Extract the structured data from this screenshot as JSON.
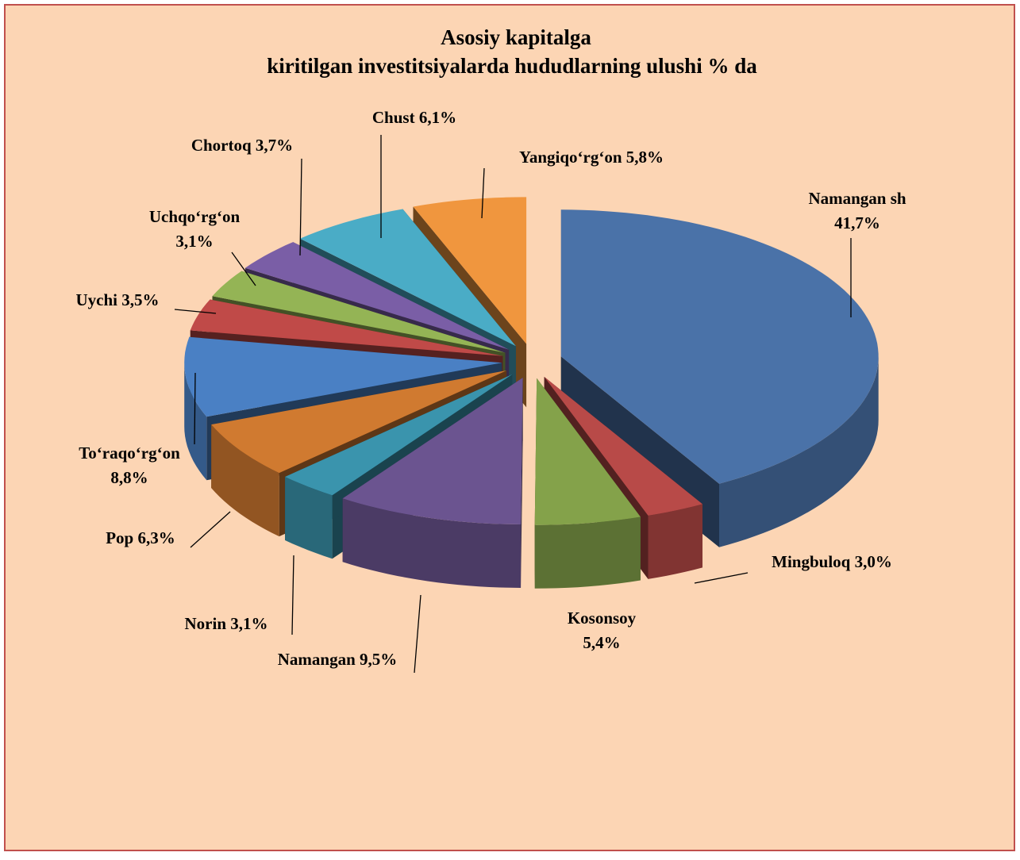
{
  "chart_data": {
    "type": "pie3d",
    "title": [
      "Asosiy kapitalga",
      "kiritilgan investitsiyalarda hududlarning ulushi % da"
    ],
    "categories": [
      "Namangan sh",
      "Mingbuloq",
      "Kosonsoy",
      "Namangan",
      "Norin",
      "Pop",
      "To‘raqo‘rg‘on",
      "Uychi",
      "Uchqo‘rg‘on",
      "Chortoq",
      "Chust",
      "Yangiqo‘rg‘on"
    ],
    "values": [
      41.7,
      3.0,
      5.4,
      9.5,
      3.1,
      6.3,
      8.8,
      3.5,
      3.1,
      3.7,
      6.1,
      5.8
    ],
    "value_labels": [
      "41,7%",
      "3,0%",
      "5,4%",
      "9,5%",
      "3,1%",
      "6,3%",
      "8,8%",
      "3,5%",
      "3,1%",
      "3,7%",
      "6,1%",
      "5,8%"
    ],
    "colors": [
      "#4a72a8",
      "#b84a48",
      "#84a24a",
      "#6b5490",
      "#3a94ad",
      "#d07a30",
      "#4a80c4",
      "#c04a48",
      "#94b455",
      "#7a5ea6",
      "#4aacc6",
      "#f0963e"
    ]
  }
}
